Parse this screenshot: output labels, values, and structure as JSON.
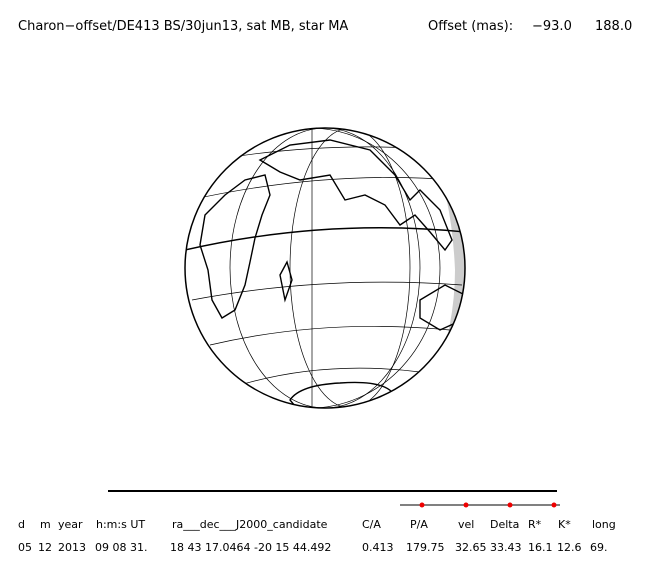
{
  "header": {
    "title": "Charon−offset/DE413 BS/30jun13, sat MB, star MA",
    "offset_label": "Offset (mas):",
    "offset_values": [
      "−93.0",
      "188.0"
    ]
  },
  "table": {
    "columns": [
      "d",
      "m",
      "year",
      "h:m:s UT",
      "ra___dec___J2000_candidate",
      "C/A",
      "P/A",
      "vel",
      "Delta",
      "R*",
      "K*",
      "long"
    ],
    "rows": [
      [
        "05",
        "12",
        "2013",
        "09 08 31.",
        "18 43 17.0464 -20 15  44.492",
        "0.413",
        "179.75",
        "32.65",
        "33.43",
        "16.1",
        "12.6",
        "69."
      ]
    ]
  }
}
